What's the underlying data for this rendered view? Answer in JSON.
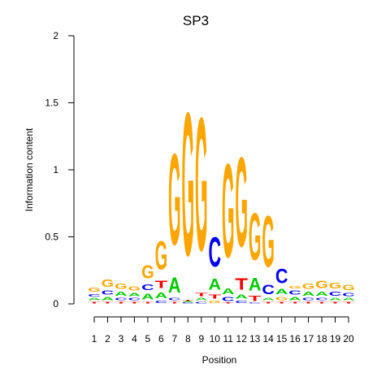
{
  "chart_data": {
    "type": "sequence-logo",
    "title": "SP3",
    "xlabel": "Position",
    "ylabel": "Information content",
    "ylim": [
      0,
      2
    ],
    "yticks": [
      "0",
      "0.5",
      "1",
      "1.5",
      "2"
    ],
    "positions": [
      "1",
      "2",
      "3",
      "4",
      "5",
      "6",
      "7",
      "8",
      "9",
      "10",
      "11",
      "12",
      "13",
      "14",
      "15",
      "16",
      "17",
      "18",
      "19",
      "20"
    ],
    "letter_colors": {
      "A": "#00cc00",
      "C": "#0000ff",
      "G": "#ffa500",
      "T": "#ff0000"
    },
    "stacks": [
      [
        {
          "letter": "T",
          "bits": 0.02
        },
        {
          "letter": "A",
          "bits": 0.03
        },
        {
          "letter": "C",
          "bits": 0.03
        },
        {
          "letter": "G",
          "bits": 0.05
        }
      ],
      [
        {
          "letter": "T",
          "bits": 0.02
        },
        {
          "letter": "A",
          "bits": 0.04
        },
        {
          "letter": "C",
          "bits": 0.05
        },
        {
          "letter": "G",
          "bits": 0.09
        }
      ],
      [
        {
          "letter": "T",
          "bits": 0.02
        },
        {
          "letter": "C",
          "bits": 0.03
        },
        {
          "letter": "A",
          "bits": 0.05
        },
        {
          "letter": "G",
          "bits": 0.06
        }
      ],
      [
        {
          "letter": "T",
          "bits": 0.02
        },
        {
          "letter": "C",
          "bits": 0.03
        },
        {
          "letter": "A",
          "bits": 0.04
        },
        {
          "letter": "G",
          "bits": 0.05
        }
      ],
      [
        {
          "letter": "T",
          "bits": 0.02
        },
        {
          "letter": "A",
          "bits": 0.07
        },
        {
          "letter": "C",
          "bits": 0.07
        },
        {
          "letter": "G",
          "bits": 0.16
        }
      ],
      [
        {
          "letter": "C",
          "bits": 0.03
        },
        {
          "letter": "A",
          "bits": 0.07
        },
        {
          "letter": "T",
          "bits": 0.09
        },
        {
          "letter": "G",
          "bits": 0.34
        }
      ],
      [
        {
          "letter": "T",
          "bits": 0.02
        },
        {
          "letter": "C",
          "bits": 0.03
        },
        {
          "letter": "A",
          "bits": 0.18
        },
        {
          "letter": "G",
          "bits": 1.09
        }
      ],
      [
        {
          "letter": "C",
          "bits": 0.01
        },
        {
          "letter": "A",
          "bits": 0.01
        },
        {
          "letter": "T",
          "bits": 0.01
        },
        {
          "letter": "G",
          "bits": 1.71
        }
      ],
      [
        {
          "letter": "C",
          "bits": 0.02
        },
        {
          "letter": "A",
          "bits": 0.03
        },
        {
          "letter": "T",
          "bits": 0.04
        },
        {
          "letter": "G",
          "bits": 1.59
        }
      ],
      [
        {
          "letter": "G",
          "bits": 0.03
        },
        {
          "letter": "T",
          "bits": 0.05
        },
        {
          "letter": "A",
          "bits": 0.13
        },
        {
          "letter": "C",
          "bits": 0.35
        }
      ],
      [
        {
          "letter": "T",
          "bits": 0.01
        },
        {
          "letter": "C",
          "bits": 0.05
        },
        {
          "letter": "A",
          "bits": 0.07
        },
        {
          "letter": "G",
          "bits": 1.12
        }
      ],
      [
        {
          "letter": "C",
          "bits": 0.03
        },
        {
          "letter": "A",
          "bits": 0.05
        },
        {
          "letter": "T",
          "bits": 0.14
        },
        {
          "letter": "G",
          "bits": 1.07
        }
      ],
      [
        {
          "letter": "C",
          "bits": 0.01
        },
        {
          "letter": "T",
          "bits": 0.06
        },
        {
          "letter": "A",
          "bits": 0.15
        },
        {
          "letter": "G",
          "bits": 0.56
        }
      ],
      [
        {
          "letter": "T",
          "bits": 0.02
        },
        {
          "letter": "A",
          "bits": 0.03
        },
        {
          "letter": "C",
          "bits": 0.11
        },
        {
          "letter": "G",
          "bits": 0.61
        }
      ],
      [
        {
          "letter": "T",
          "bits": 0.02
        },
        {
          "letter": "G",
          "bits": 0.04
        },
        {
          "letter": "A",
          "bits": 0.06
        },
        {
          "letter": "C",
          "bits": 0.17
        }
      ],
      [
        {
          "letter": "T",
          "bits": 0.02
        },
        {
          "letter": "A",
          "bits": 0.04
        },
        {
          "letter": "C",
          "bits": 0.05
        },
        {
          "letter": "G",
          "bits": 0.03
        }
      ],
      [
        {
          "letter": "T",
          "bits": 0.02
        },
        {
          "letter": "C",
          "bits": 0.03
        },
        {
          "letter": "A",
          "bits": 0.05
        },
        {
          "letter": "G",
          "bits": 0.06
        }
      ],
      [
        {
          "letter": "T",
          "bits": 0.02
        },
        {
          "letter": "C",
          "bits": 0.03
        },
        {
          "letter": "A",
          "bits": 0.05
        },
        {
          "letter": "G",
          "bits": 0.09
        }
      ],
      [
        {
          "letter": "T",
          "bits": 0.02
        },
        {
          "letter": "A",
          "bits": 0.03
        },
        {
          "letter": "C",
          "bits": 0.05
        },
        {
          "letter": "G",
          "bits": 0.07
        }
      ],
      [
        {
          "letter": "T",
          "bits": 0.02
        },
        {
          "letter": "A",
          "bits": 0.03
        },
        {
          "letter": "C",
          "bits": 0.04
        },
        {
          "letter": "G",
          "bits": 0.06
        }
      ]
    ]
  }
}
